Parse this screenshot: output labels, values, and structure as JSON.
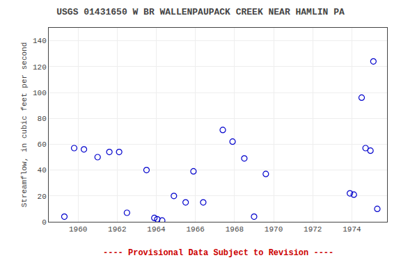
{
  "chart_data": {
    "type": "scatter",
    "title": "USGS 01431650 W BR WALLENPAUPACK CREEK NEAR HAMLIN PA",
    "y_label": "Streamflow, in cubic feet per second",
    "x": [
      1959.3,
      1959.8,
      1960.3,
      1961.0,
      1961.6,
      1962.1,
      1962.5,
      1963.5,
      1963.9,
      1964.05,
      1964.3,
      1964.9,
      1965.5,
      1965.9,
      1966.4,
      1967.4,
      1967.9,
      1968.5,
      1969.0,
      1969.6,
      1973.9,
      1974.1,
      1974.5,
      1974.7,
      1974.95,
      1975.1,
      1975.3
    ],
    "values": [
      4,
      57,
      56,
      50,
      54,
      54,
      7,
      40,
      3,
      2,
      1,
      20,
      15,
      39,
      15,
      71,
      62,
      49,
      4,
      37,
      22,
      21,
      96,
      57,
      55,
      124,
      10
    ],
    "color": "#0000cc",
    "marker": "circle-open",
    "xlim": [
      1958.5,
      1975.8
    ],
    "ylim": [
      0,
      150
    ],
    "xticks": [
      1960,
      1962,
      1964,
      1966,
      1968,
      1970,
      1972,
      1974
    ],
    "yticks": [
      0,
      20,
      40,
      60,
      80,
      100,
      120,
      140
    ],
    "grid": true,
    "annotations": [
      {
        "text": "---- Provisional Data Subject to Revision ----",
        "color": "#cc0000"
      }
    ]
  }
}
